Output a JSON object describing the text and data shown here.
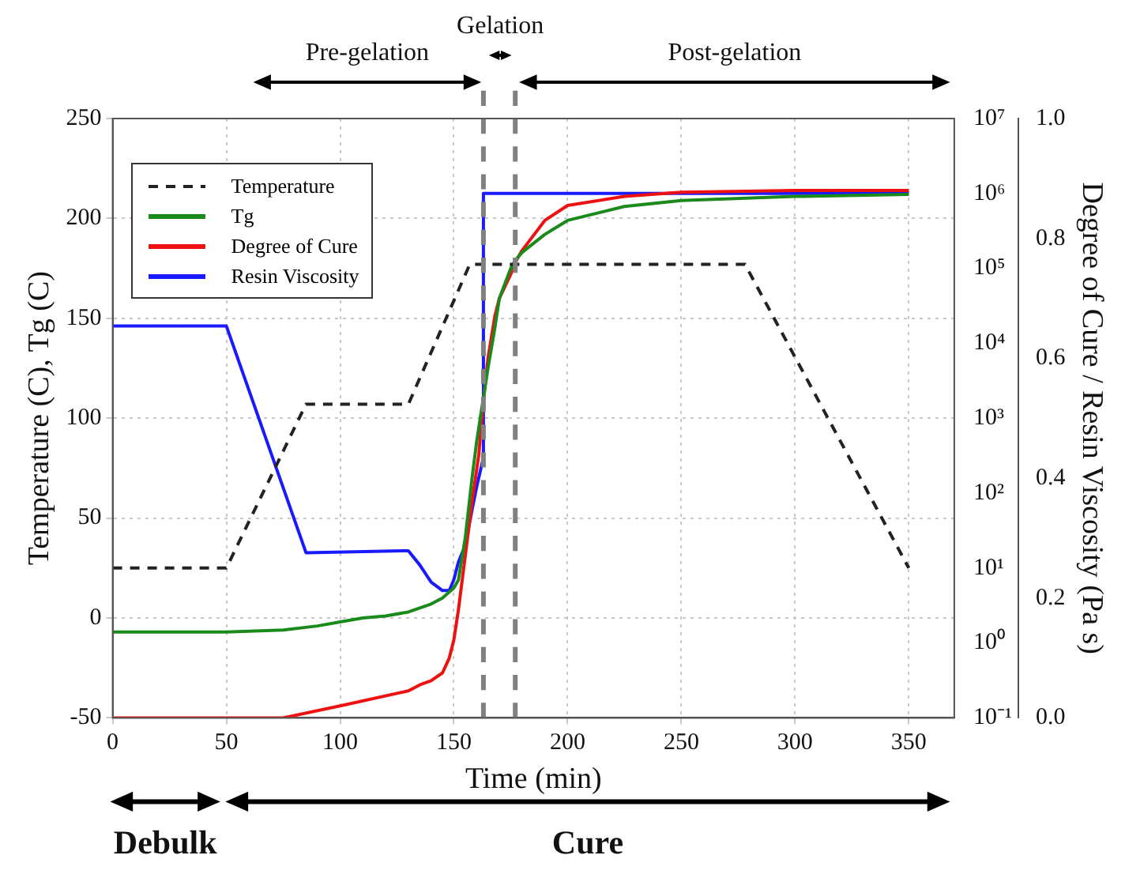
{
  "chart_data": {
    "type": "line",
    "xlabel": "Time (min)",
    "ylabel": "Temperature (C), Tg (C)",
    "y2label": "Degree of Cure / Resin Viscosity (Pa s)",
    "xlim": [
      0,
      370
    ],
    "xticks": [
      0,
      50,
      100,
      150,
      200,
      250,
      300,
      350
    ],
    "ylim": [
      -50,
      250
    ],
    "yticks": [
      -50,
      0,
      50,
      100,
      150,
      200,
      250
    ],
    "y2lim": [
      0,
      1
    ],
    "y2ticks": [
      {
        "value": 0,
        "label": "0.0"
      },
      {
        "value": 0.2,
        "label": "0.2"
      },
      {
        "value": 0.4,
        "label": "0.4"
      },
      {
        "value": 0.6,
        "label": "0.6"
      },
      {
        "value": 0.8,
        "label": "0.8"
      },
      {
        "value": 1,
        "label": "1.0"
      }
    ],
    "y3lim": [
      0.1,
      10000000
    ],
    "y3ticks": [
      {
        "value": 0.1,
        "label": "10⁻¹"
      },
      {
        "value": 1,
        "label": "10⁰"
      },
      {
        "value": 10,
        "label": "10¹"
      },
      {
        "value": 100,
        "label": "10²"
      },
      {
        "value": 1000,
        "label": "10³"
      },
      {
        "value": 10000,
        "label": "10⁴"
      },
      {
        "value": 100000,
        "label": "10⁵"
      },
      {
        "value": 1000000,
        "label": "10⁶"
      },
      {
        "value": 10000000,
        "label": "10⁷"
      }
    ],
    "log": "y3",
    "grid": true,
    "legend": "top left",
    "marker": "none",
    "series": [
      {
        "name": "Temperature",
        "color": "#222222",
        "line_style": "dashed",
        "x": [
          0,
          50,
          85,
          130,
          157,
          278,
          350
        ],
        "values": [
          25,
          25,
          107,
          107,
          177,
          177,
          25
        ]
      },
      {
        "name": "Tg",
        "color": "#1a8a1a",
        "x": [
          0,
          50,
          75,
          90,
          100,
          110,
          120,
          130,
          135,
          140,
          145,
          150,
          152,
          155,
          158,
          160,
          162,
          163,
          165,
          168,
          170,
          175,
          177,
          180,
          190,
          200,
          225,
          250,
          300,
          350
        ],
        "values": [
          -7,
          -7,
          -6,
          -4,
          -2,
          0,
          1,
          3,
          5,
          7,
          10,
          15,
          19,
          40,
          70,
          88,
          103,
          110,
          125,
          145,
          160,
          175,
          179,
          183,
          192,
          199,
          206,
          209,
          211,
          212
        ]
      },
      {
        "name": "Degree of Cure",
        "color": "#ee1111",
        "axis": "y2",
        "x": [
          0,
          75,
          100,
          130,
          135,
          140,
          145,
          148,
          150,
          152,
          155,
          158,
          161,
          163,
          165,
          168,
          170,
          175,
          177,
          180,
          190,
          200,
          225,
          250,
          300,
          350
        ],
        "values": [
          0,
          0,
          0.02,
          0.045,
          0.055,
          0.062,
          0.075,
          0.1,
          0.13,
          0.18,
          0.27,
          0.36,
          0.44,
          0.53,
          0.6,
          0.67,
          0.7,
          0.74,
          0.76,
          0.78,
          0.83,
          0.855,
          0.87,
          0.877,
          0.88,
          0.88
        ]
      },
      {
        "name": "Resin Viscosity",
        "color": "#1a1aff",
        "axis": "y3",
        "x": [
          0,
          50,
          85,
          130,
          135,
          140,
          145,
          148,
          150,
          152,
          155,
          158,
          160,
          162,
          163,
          163,
          350
        ],
        "values": [
          17000,
          17000,
          16,
          17,
          11,
          6.5,
          5,
          5,
          7,
          12,
          20,
          60,
          120,
          220,
          300,
          1000000,
          1000000
        ]
      }
    ],
    "ref_lines": [
      {
        "axis": "x",
        "value": 163,
        "color": "#808080",
        "line_style": "dashed"
      },
      {
        "axis": "x",
        "value": 177,
        "color": "#808080",
        "line_style": "dashed"
      }
    ],
    "annotations": [
      "Pre-gelation",
      "Gelation",
      "Post-gelation",
      "Debulk",
      "Cure"
    ]
  }
}
